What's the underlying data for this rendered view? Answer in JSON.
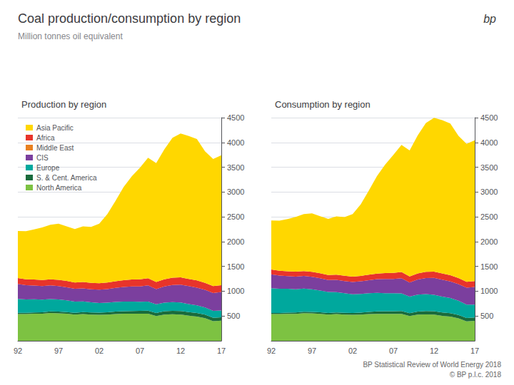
{
  "title": "Coal production/consumption by region",
  "subtitle": "Million tonnes oil equivalent",
  "annotations": [
    "bp"
  ],
  "footer": [
    "BP Statistical Review of World Energy 2018",
    "© BP p.l.c. 2018"
  ],
  "chart_data": [
    {
      "type": "area",
      "stacked": true,
      "title": "Production by region",
      "categories": [
        "92",
        null,
        null,
        null,
        null,
        "97",
        null,
        null,
        null,
        null,
        "02",
        null,
        null,
        null,
        null,
        "07",
        null,
        null,
        null,
        null,
        "12",
        null,
        null,
        null,
        null,
        "17"
      ],
      "series": [
        {
          "name": "North America",
          "color": "#7dc242",
          "values": [
            540,
            540,
            545,
            545,
            560,
            555,
            545,
            530,
            540,
            530,
            525,
            530,
            540,
            545,
            545,
            545,
            545,
            500,
            530,
            535,
            530,
            505,
            490,
            455,
            395,
            405
          ]
        },
        {
          "name": "S. & Cent. America",
          "color": "#1a6b3c",
          "values": [
            25,
            25,
            28,
            30,
            32,
            34,
            35,
            35,
            38,
            40,
            42,
            44,
            48,
            52,
            56,
            58,
            62,
            62,
            65,
            70,
            72,
            72,
            72,
            72,
            70,
            70
          ]
        },
        {
          "name": "Europe",
          "color": "#00a89d",
          "values": [
            280,
            270,
            265,
            255,
            250,
            245,
            235,
            225,
            215,
            205,
            195,
            195,
            195,
            195,
            190,
            185,
            185,
            175,
            175,
            175,
            170,
            165,
            155,
            145,
            140,
            135
          ]
        },
        {
          "name": "CIS",
          "color": "#7b3f9e",
          "values": [
            300,
            285,
            275,
            275,
            275,
            270,
            265,
            260,
            265,
            265,
            270,
            275,
            285,
            295,
            305,
            310,
            325,
            305,
            325,
            345,
            360,
            360,
            355,
            355,
            360,
            375
          ]
        },
        {
          "name": "Middle East",
          "color": "#e88020",
          "values": [
            null,
            null,
            null,
            null,
            null,
            null,
            null,
            null,
            null,
            null,
            null,
            null,
            null,
            null,
            null,
            null,
            null,
            null,
            null,
            null,
            null,
            null,
            null,
            null,
            null,
            null
          ]
        },
        {
          "name": "Africa",
          "color": "#e8342a",
          "values": [
            120,
            120,
            122,
            122,
            124,
            126,
            126,
            124,
            128,
            128,
            128,
            130,
            133,
            135,
            140,
            142,
            145,
            143,
            145,
            148,
            148,
            147,
            145,
            142,
            140,
            138
          ]
        },
        {
          "name": "Asia Pacific",
          "color": "#ffd700",
          "values": [
            950,
            970,
            1010,
            1060,
            1100,
            1130,
            1100,
            1080,
            1120,
            1130,
            1200,
            1380,
            1620,
            1880,
            2080,
            2250,
            2430,
            2400,
            2620,
            2820,
            2900,
            2880,
            2850,
            2650,
            2560,
            2620
          ]
        }
      ],
      "ylim": [
        0,
        4500
      ],
      "yticks": [
        500,
        1000,
        1500,
        2000,
        2500,
        3000,
        3500,
        4000,
        4500
      ],
      "grid": true,
      "legend": "upper left"
    },
    {
      "type": "area",
      "stacked": true,
      "title": "Consumption by region",
      "categories": [
        "92",
        null,
        null,
        null,
        null,
        "97",
        null,
        null,
        null,
        null,
        "02",
        null,
        null,
        null,
        null,
        "07",
        null,
        null,
        null,
        null,
        "12",
        null,
        null,
        null,
        null,
        "17"
      ],
      "series": [
        {
          "name": "North America",
          "color": "#7dc242",
          "values": [
            540,
            538,
            543,
            543,
            558,
            553,
            543,
            528,
            538,
            528,
            523,
            528,
            538,
            543,
            543,
            543,
            543,
            498,
            528,
            533,
            528,
            503,
            488,
            453,
            393,
            403
          ]
        },
        {
          "name": "S. & Cent. America",
          "color": "#1a6b3c",
          "values": [
            22,
            23,
            25,
            27,
            29,
            31,
            32,
            32,
            35,
            37,
            39,
            41,
            45,
            49,
            53,
            55,
            59,
            59,
            62,
            67,
            69,
            69,
            69,
            69,
            67,
            67
          ]
        },
        {
          "name": "Europe",
          "color": "#00a89d",
          "values": [
            500,
            490,
            480,
            470,
            465,
            455,
            440,
            425,
            410,
            395,
            375,
            375,
            375,
            375,
            365,
            360,
            355,
            335,
            340,
            340,
            330,
            320,
            305,
            285,
            270,
            260
          ]
        },
        {
          "name": "CIS",
          "color": "#7b3f9e",
          "values": [
            280,
            265,
            255,
            255,
            255,
            250,
            245,
            240,
            245,
            245,
            250,
            255,
            265,
            275,
            285,
            290,
            305,
            285,
            305,
            325,
            340,
            340,
            335,
            335,
            340,
            355
          ]
        },
        {
          "name": "Africa",
          "color": "#e8342a",
          "values": [
            95,
            96,
            98,
            99,
            100,
            102,
            103,
            102,
            105,
            106,
            107,
            109,
            112,
            114,
            119,
            121,
            124,
            122,
            124,
            127,
            128,
            127,
            125,
            122,
            120,
            118
          ]
        },
        {
          "name": "Asia Pacific",
          "color": "#ffd700",
          "values": [
            990,
            1010,
            1055,
            1105,
            1150,
            1180,
            1150,
            1130,
            1175,
            1185,
            1260,
            1445,
            1700,
            1970,
            2190,
            2380,
            2565,
            2540,
            2785,
            3000,
            3100,
            3090,
            3060,
            2870,
            2780,
            2840
          ]
        }
      ],
      "ylim": [
        0,
        4500
      ],
      "yticks": [
        500,
        1000,
        1500,
        2000,
        2500,
        3000,
        3500,
        4000,
        4500
      ],
      "grid": true
    }
  ]
}
